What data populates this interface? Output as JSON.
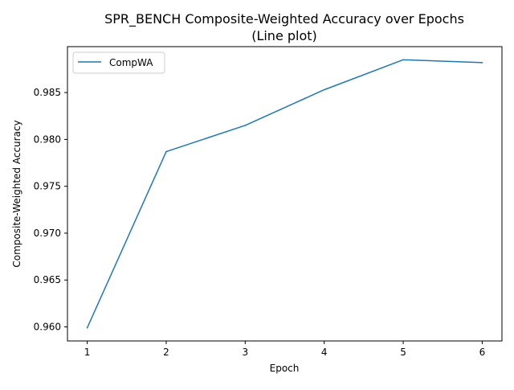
{
  "chart_data": {
    "type": "line",
    "title": "SPR_BENCH Composite-Weighted Accuracy over Epochs",
    "subtitle": "(Line plot)",
    "xlabel": "Epoch",
    "ylabel": "Composite-Weighted Accuracy",
    "x": [
      1,
      2,
      3,
      4,
      5,
      6
    ],
    "series": [
      {
        "name": "CompWA",
        "color": "#1f77b4",
        "values": [
          0.9599,
          0.9787,
          0.9815,
          0.9853,
          0.9885,
          0.9882
        ]
      }
    ],
    "xticks": [
      "1",
      "2",
      "3",
      "4",
      "5",
      "6"
    ],
    "yticks": [
      "0.960",
      "0.965",
      "0.970",
      "0.975",
      "0.980",
      "0.985"
    ],
    "xlim": [
      0.75,
      6.25
    ],
    "ylim": [
      0.9585,
      0.9899
    ],
    "grid": false,
    "legend_position": "top-left"
  }
}
